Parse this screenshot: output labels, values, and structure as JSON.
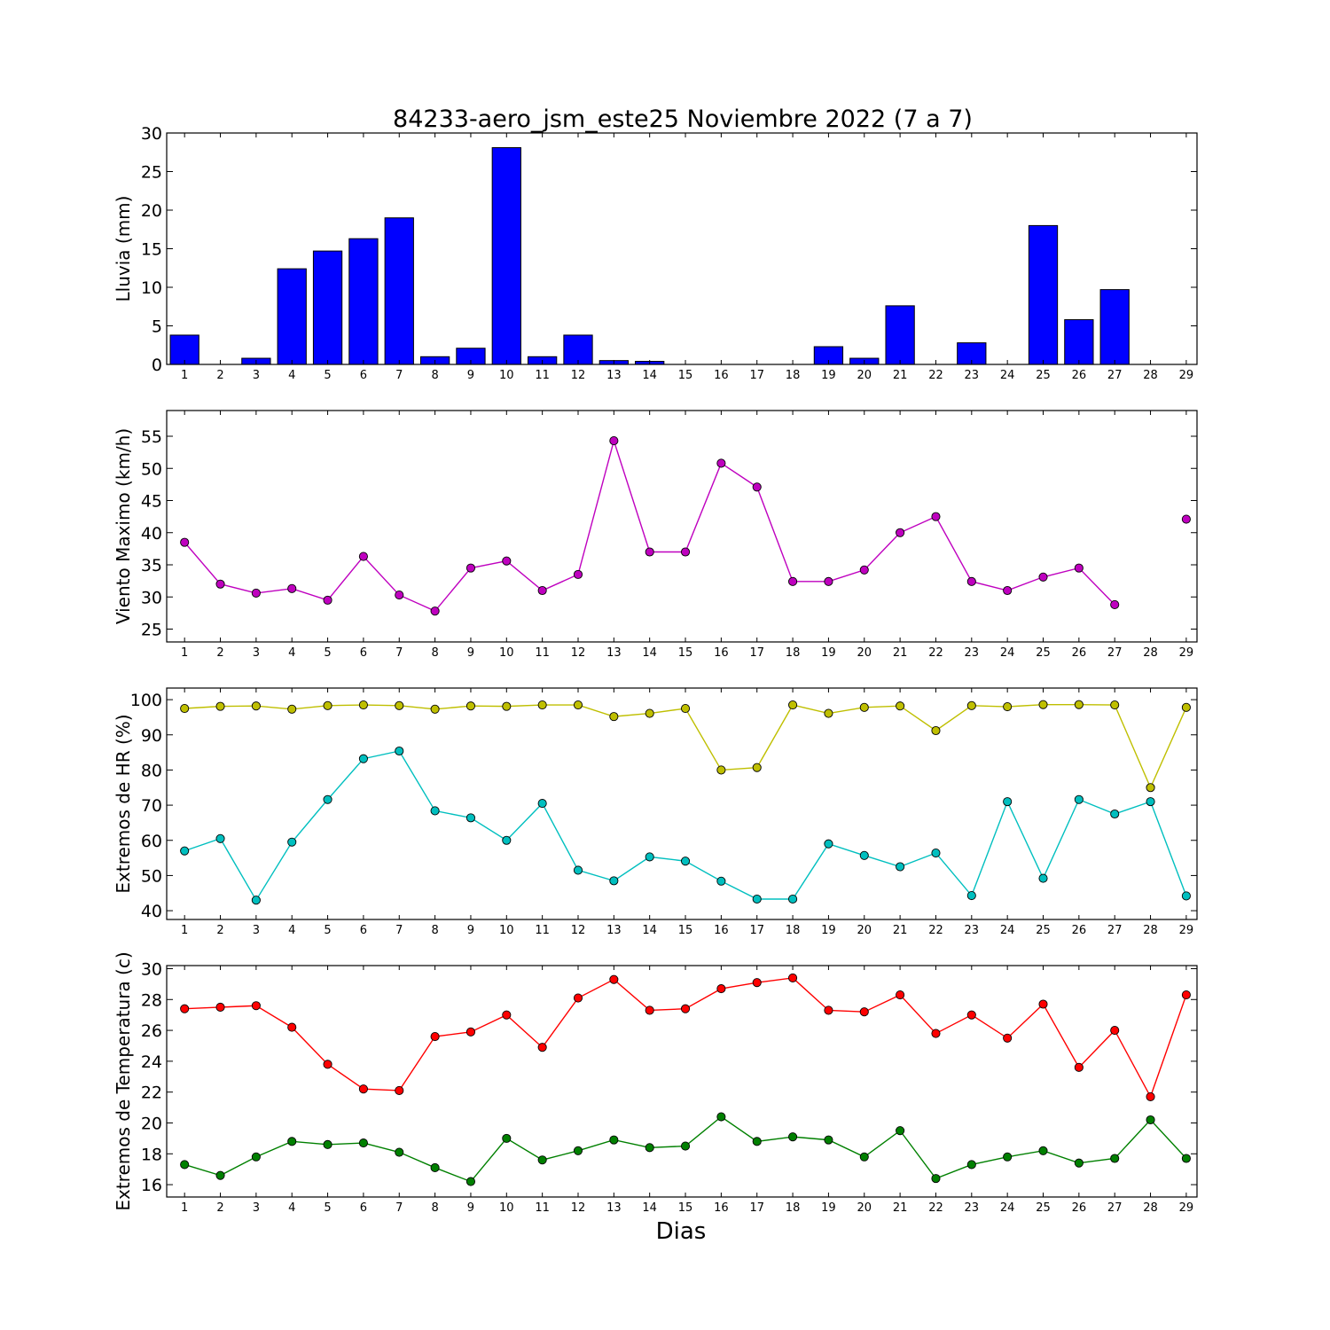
{
  "title": "84233-aero_jsm_este25 Noviembre 2022  (7 a 7)",
  "xlabel": "Dias",
  "chart_data": [
    {
      "type": "bar",
      "ylabel": "Lluvia (mm)",
      "ylim": [
        0,
        30
      ],
      "yticks": [
        0,
        5,
        10,
        15,
        20,
        25,
        30
      ],
      "categories": [
        "1",
        "2",
        "3",
        "4",
        "5",
        "6",
        "7",
        "8",
        "9",
        "10",
        "11",
        "12",
        "13",
        "14",
        "15",
        "16",
        "17",
        "18",
        "19",
        "20",
        "21",
        "22",
        "23",
        "24",
        "25",
        "26",
        "27",
        "28",
        "29"
      ],
      "series": [
        {
          "color": "#0000ff",
          "values": [
            3.8,
            0,
            0.8,
            12.4,
            14.7,
            16.3,
            19.0,
            1.0,
            2.1,
            28.1,
            1.0,
            3.8,
            0.5,
            0.4,
            0,
            0,
            0,
            0,
            2.3,
            0.8,
            7.6,
            0,
            2.8,
            0,
            18.0,
            5.8,
            9.7,
            0,
            0
          ]
        }
      ]
    },
    {
      "type": "line",
      "ylabel": "Viento Maximo (km/h)",
      "ylim": [
        23,
        59
      ],
      "yticks": [
        25,
        30,
        35,
        40,
        45,
        50,
        55
      ],
      "categories": [
        "1",
        "2",
        "3",
        "4",
        "5",
        "6",
        "7",
        "8",
        "9",
        "10",
        "11",
        "12",
        "13",
        "14",
        "15",
        "16",
        "17",
        "18",
        "19",
        "20",
        "21",
        "22",
        "23",
        "24",
        "25",
        "26",
        "27",
        "28",
        "29"
      ],
      "series": [
        {
          "color": "#bf00bf",
          "values": [
            38.5,
            32.0,
            30.6,
            31.3,
            29.5,
            36.3,
            30.3,
            27.8,
            34.5,
            35.6,
            31.0,
            33.5,
            54.3,
            37.0,
            37.0,
            50.8,
            47.1,
            32.4,
            32.4,
            34.2,
            40.0,
            42.5,
            32.4,
            31.0,
            33.1,
            34.5,
            28.8,
            null,
            42.1
          ]
        }
      ]
    },
    {
      "type": "line",
      "ylabel": "Extremos de HR (%)",
      "ylim": [
        37.5,
        103.3
      ],
      "yticks": [
        40,
        50,
        60,
        70,
        80,
        90,
        100
      ],
      "categories": [
        "1",
        "2",
        "3",
        "4",
        "5",
        "6",
        "7",
        "8",
        "9",
        "10",
        "11",
        "12",
        "13",
        "14",
        "15",
        "16",
        "17",
        "18",
        "19",
        "20",
        "21",
        "22",
        "23",
        "24",
        "25",
        "26",
        "27",
        "28",
        "29"
      ],
      "series": [
        {
          "color": "#bfbf00",
          "values": [
            97.5,
            98.1,
            98.2,
            97.3,
            98.3,
            98.5,
            98.3,
            97.3,
            98.2,
            98.1,
            98.5,
            98.5,
            95.2,
            96.1,
            97.5,
            80.0,
            80.7,
            98.5,
            96.1,
            97.8,
            98.2,
            91.2,
            98.3,
            98.0,
            98.6,
            98.6,
            98.5,
            75.0,
            97.8
          ]
        },
        {
          "color": "#00bfbf",
          "values": [
            57.0,
            60.5,
            43.0,
            59.5,
            71.6,
            83.2,
            85.4,
            68.4,
            66.4,
            60.0,
            70.5,
            51.5,
            48.5,
            55.3,
            54.1,
            48.4,
            43.3,
            43.3,
            59.0,
            55.7,
            52.5,
            56.4,
            44.3,
            71.0,
            49.2,
            71.6,
            67.5,
            71.0,
            44.2
          ]
        }
      ]
    },
    {
      "type": "line",
      "ylabel": "Extremos de Temperatura (c)",
      "ylim": [
        15.2,
        30.2
      ],
      "yticks": [
        16,
        18,
        20,
        22,
        24,
        26,
        28,
        30
      ],
      "categories": [
        "1",
        "2",
        "3",
        "4",
        "5",
        "6",
        "7",
        "8",
        "9",
        "10",
        "11",
        "12",
        "13",
        "14",
        "15",
        "16",
        "17",
        "18",
        "19",
        "20",
        "21",
        "22",
        "23",
        "24",
        "25",
        "26",
        "27",
        "28",
        "29"
      ],
      "series": [
        {
          "color": "#ff0000",
          "values": [
            27.4,
            27.5,
            27.6,
            26.2,
            23.8,
            22.2,
            22.1,
            25.6,
            25.9,
            27.0,
            24.9,
            28.1,
            29.3,
            27.3,
            27.4,
            28.7,
            29.1,
            29.4,
            27.3,
            27.2,
            28.3,
            25.8,
            27.0,
            25.5,
            27.7,
            23.6,
            26.0,
            21.7,
            28.3
          ]
        },
        {
          "color": "#008000",
          "values": [
            17.3,
            16.6,
            17.8,
            18.8,
            18.6,
            18.7,
            18.1,
            17.1,
            16.2,
            19.0,
            17.6,
            18.2,
            18.9,
            18.4,
            18.5,
            20.4,
            18.8,
            19.1,
            18.9,
            17.8,
            19.5,
            16.4,
            17.3,
            17.8,
            18.2,
            17.4,
            17.7,
            20.2,
            17.7
          ]
        }
      ]
    }
  ]
}
